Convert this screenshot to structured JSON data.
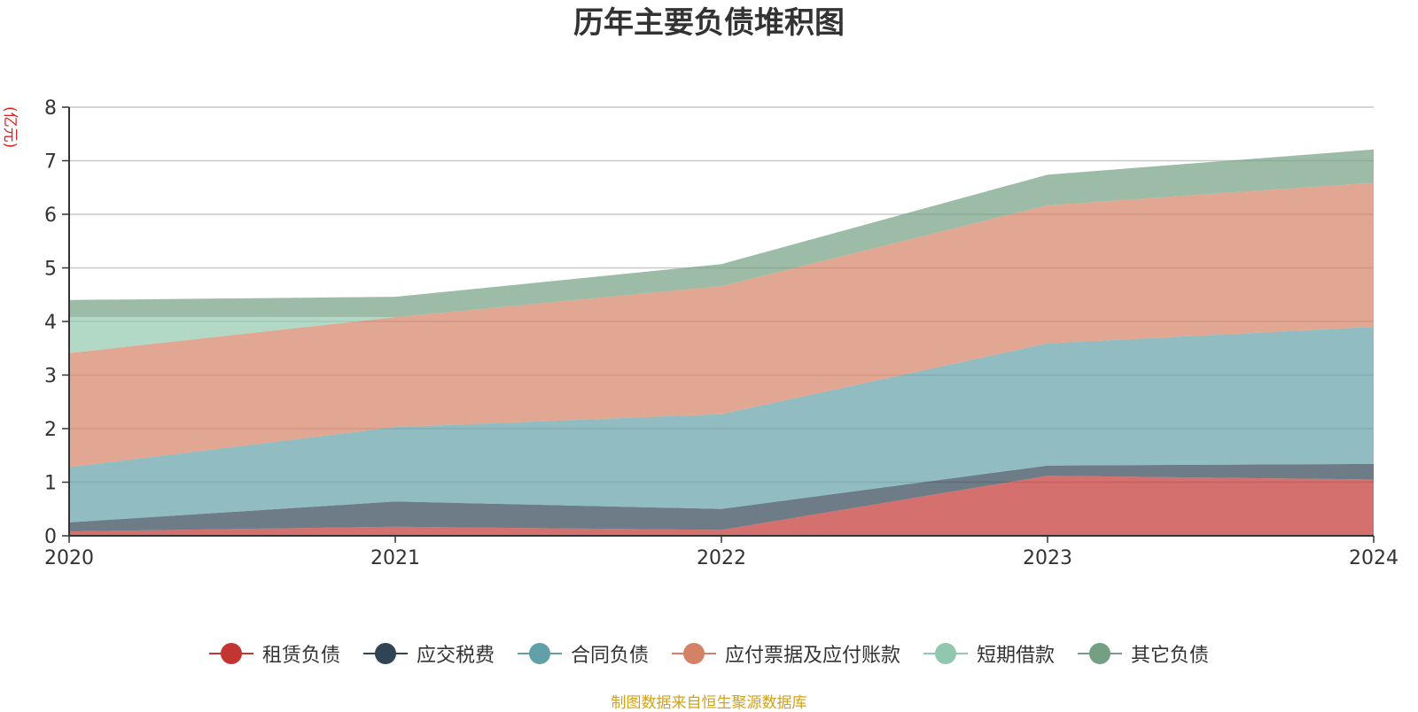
{
  "chart_data": {
    "type": "area",
    "stacked": true,
    "title": "历年主要负债堆积图",
    "ylabel": "(亿元)",
    "categories": [
      "2020",
      "2021",
      "2022",
      "2023",
      "2024"
    ],
    "ylim": [
      0,
      8
    ],
    "yticks": [
      0,
      1,
      2,
      3,
      4,
      5,
      6,
      7,
      8
    ],
    "grid": true,
    "legend_position": "bottom",
    "series": [
      {
        "name": "租赁负债",
        "color": "#c23531",
        "values": [
          0.08,
          0.17,
          0.11,
          1.12,
          1.05
        ]
      },
      {
        "name": "应交税费",
        "color": "#2f4554",
        "values": [
          0.17,
          0.47,
          0.39,
          0.19,
          0.29
        ]
      },
      {
        "name": "合同负债",
        "color": "#61a0a8",
        "values": [
          1.03,
          1.39,
          1.77,
          2.28,
          2.56
        ]
      },
      {
        "name": "应付票据及应付账款",
        "color": "#d48265",
        "values": [
          2.13,
          2.05,
          2.39,
          2.58,
          2.69
        ]
      },
      {
        "name": "短期借款",
        "color": "#91c7ae",
        "values": [
          0.67,
          0.0,
          0.0,
          0.0,
          0.0
        ]
      },
      {
        "name": "其它负债",
        "color": "#749f83",
        "values": [
          0.32,
          0.38,
          0.41,
          0.57,
          0.62
        ]
      }
    ]
  },
  "footer": {
    "source": "制图数据来自恒生聚源数据库"
  }
}
